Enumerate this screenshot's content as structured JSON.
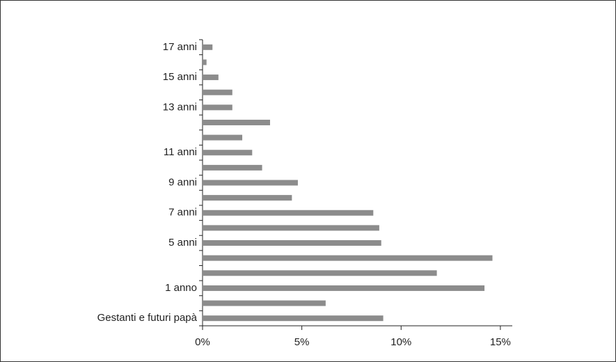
{
  "chart_data": {
    "type": "barh",
    "categories": [
      "17 anni",
      null,
      "15 anni",
      null,
      "13 anni",
      null,
      null,
      "11 anni",
      null,
      "9 anni",
      null,
      "7 anni",
      null,
      "5 anni",
      null,
      null,
      "1 anno",
      null,
      "Gestanti e futuri papà"
    ],
    "values": [
      0.5,
      0.2,
      0.8,
      1.5,
      1.5,
      3.4,
      2.0,
      2.5,
      3.0,
      4.8,
      4.5,
      8.6,
      8.9,
      9.0,
      14.6,
      11.8,
      14.2,
      6.2,
      9.1
    ],
    "color": "#8c8c8c",
    "xlim": [
      0,
      15.6
    ],
    "xticks": [
      {
        "value": 0,
        "label": "0%"
      },
      {
        "value": 5,
        "label": "5%"
      },
      {
        "value": 10,
        "label": "10%"
      },
      {
        "value": 15,
        "label": "15%"
      }
    ]
  }
}
